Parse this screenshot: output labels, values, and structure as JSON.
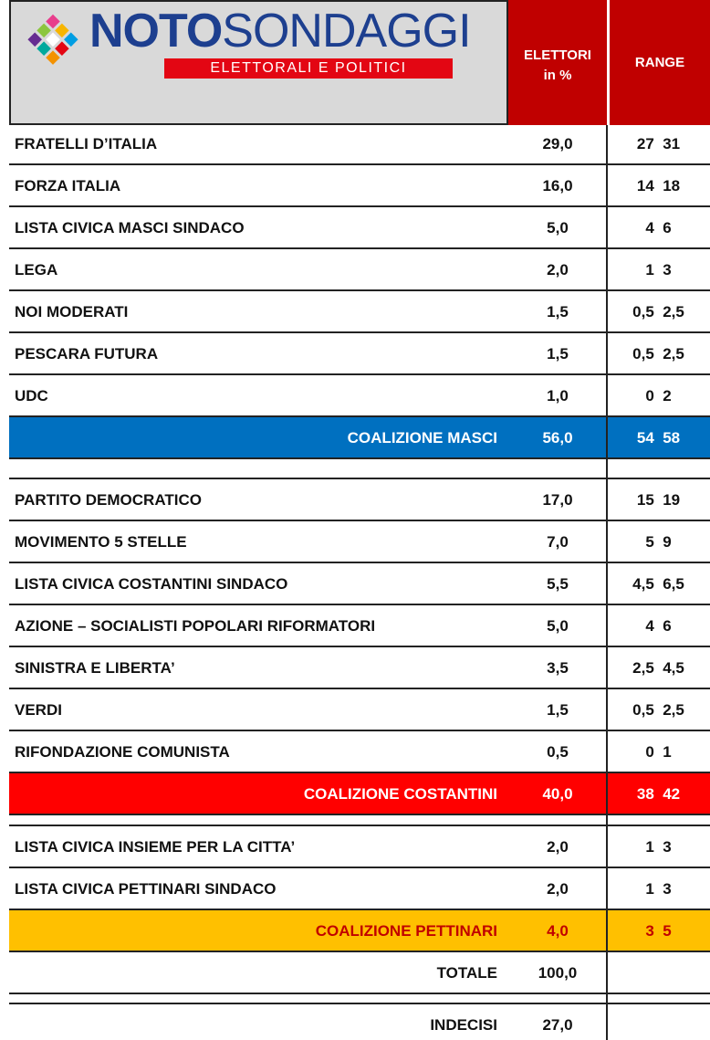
{
  "header": {
    "logo_bold": "NOTO",
    "logo_light": "SONDAGGI",
    "logo_tagline": "ELETTORALI E POLITICI",
    "col_value": [
      "ELETTORI",
      "in %"
    ],
    "col_range": "RANGE"
  },
  "sections": [
    {
      "parties": [
        {
          "name": "FRATELLI D’ITALIA",
          "value": "29,0",
          "range": "27  31"
        },
        {
          "name": "FORZA ITALIA",
          "value": "16,0",
          "range": "14  18"
        },
        {
          "name": "LISTA CIVICA MASCI SINDACO",
          "value": "5,0",
          "range": "4  6"
        },
        {
          "name": "LEGA",
          "value": "2,0",
          "range": "1  3"
        },
        {
          "name": "NOI MODERATI",
          "value": "1,5",
          "range": "0,5  2,5"
        },
        {
          "name": "PESCARA FUTURA",
          "value": "1,5",
          "range": "0,5  2,5"
        },
        {
          "name": "UDC",
          "value": "1,0",
          "range": "0  2"
        }
      ],
      "coalition": {
        "name": "COALIZIONE MASCI",
        "value": "56,0",
        "range": "54  58",
        "color": "#0070c0",
        "text_color": "#ffffff"
      }
    },
    {
      "parties": [
        {
          "name": "PARTITO DEMOCRATICO",
          "value": "17,0",
          "range": "15  19"
        },
        {
          "name": "MOVIMENTO 5 STELLE",
          "value": "7,0",
          "range": "5  9"
        },
        {
          "name": "LISTA CIVICA COSTANTINI SINDACO",
          "value": "5,5",
          "range": "4,5  6,5"
        },
        {
          "name": "AZIONE – SOCIALISTI POPOLARI RIFORMATORI",
          "value": "5,0",
          "range": "4  6"
        },
        {
          "name": "SINISTRA E LIBERTA’",
          "value": "3,5",
          "range": "2,5  4,5"
        },
        {
          "name": "VERDI",
          "value": "1,5",
          "range": "0,5  2,5"
        },
        {
          "name": "RIFONDAZIONE COMUNISTA",
          "value": "0,5",
          "range": "0  1"
        }
      ],
      "coalition": {
        "name": "COALIZIONE COSTANTINI",
        "value": "40,0",
        "range": "38  42",
        "color": "#ff0000",
        "text_color": "#ffffff"
      }
    },
    {
      "parties": [
        {
          "name": "LISTA CIVICA INSIEME PER LA CITTA’",
          "value": "2,0",
          "range": "1  3"
        },
        {
          "name": "LISTA CIVICA PETTINARI SINDACO",
          "value": "2,0",
          "range": "1  3"
        }
      ],
      "coalition": {
        "name": "COALIZIONE PETTINARI",
        "value": "4,0",
        "range": "3  5",
        "color": "#ffc000",
        "text_color": "#c00000"
      }
    }
  ],
  "total": {
    "name": "TOTALE",
    "value": "100,0"
  },
  "undecided": {
    "name": "INDECISI",
    "value": "27,0"
  }
}
